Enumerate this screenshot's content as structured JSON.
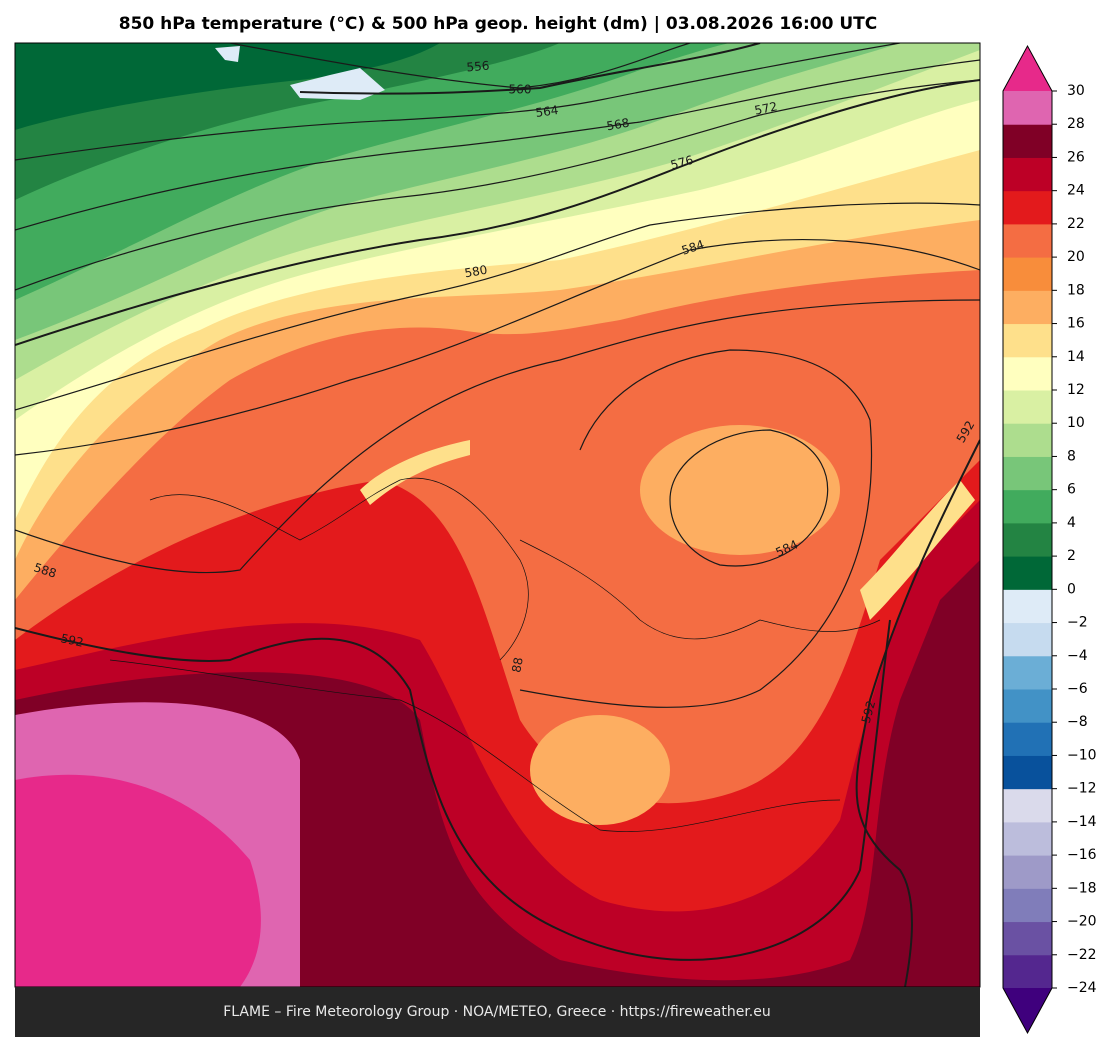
{
  "title": "850 hPa temperature (°C) & 500 hPa geop. height (dm)  |  03.08.2026 16:00 UTC",
  "map": {
    "contour_labels": [
      "556",
      "560",
      "564",
      "568",
      "572",
      "576",
      "580",
      "584",
      "588",
      "592",
      "584",
      "592",
      "592",
      "88"
    ]
  },
  "colorbar": {
    "ticks": [
      {
        "value": -24,
        "label": "−24"
      },
      {
        "value": -22,
        "label": "−22"
      },
      {
        "value": -20,
        "label": "−20"
      },
      {
        "value": -18,
        "label": "−18"
      },
      {
        "value": -16,
        "label": "−16"
      },
      {
        "value": -14,
        "label": "−14"
      },
      {
        "value": -12,
        "label": "−12"
      },
      {
        "value": -10,
        "label": "−10"
      },
      {
        "value": -8,
        "label": "−8"
      },
      {
        "value": -6,
        "label": "−6"
      },
      {
        "value": -4,
        "label": "−4"
      },
      {
        "value": -2,
        "label": "−2"
      },
      0,
      2,
      4,
      6,
      8,
      10,
      12,
      14,
      16,
      18,
      20,
      22,
      24,
      26,
      28,
      30
    ],
    "colors": [
      "#54278f",
      "#6a51a3",
      "#807dba",
      "#9e9ac8",
      "#bcbddc",
      "#dadaeb",
      "#08519c",
      "#2171b5",
      "#4292c6",
      "#6baed6",
      "#c6dbef",
      "#deebf7",
      "#006837",
      "#238443",
      "#41ab5d",
      "#78c679",
      "#addd8e",
      "#d9f0a3",
      "#ffffbf",
      "#fee08b",
      "#fdae61",
      "#f88d3b",
      "#f46d43",
      "#e31a1c",
      "#bd0026",
      "#800026",
      "#df65b0"
    ],
    "extend_colors": [
      "#3f007d",
      "#e7298a"
    ]
  },
  "footer": "FLAME – Fire Meteorology Group · NOA/METEO, Greece · https://fireweather.eu"
}
